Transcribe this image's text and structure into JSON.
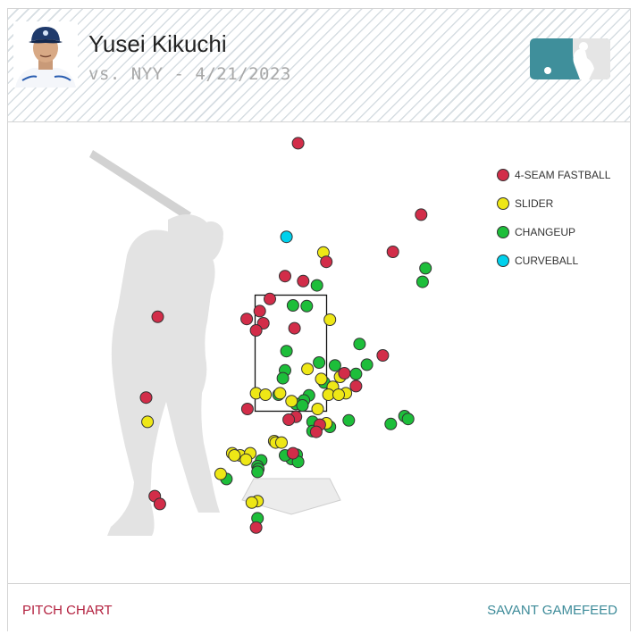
{
  "header": {
    "player_name": "Yusei Kikuchi",
    "game_info": "vs. NYY - 4/21/2023",
    "logo": "mlb-logo"
  },
  "footer": {
    "left_link": "PITCH CHART",
    "right_link": "SAVANT GAMEFEED"
  },
  "colors": {
    "4-SEAM FASTBALL": "#d22d49",
    "SLIDER": "#eee716",
    "CHANGEUP": "#1dbe3a",
    "CURVEBALL": "#00d1ed"
  },
  "chart_data": {
    "type": "scatter",
    "title": "",
    "xlabel": "",
    "ylabel": "",
    "legend_position": "top-right",
    "grid": false,
    "legend": [
      "4-SEAM FASTBALL",
      "SLIDER",
      "CHANGEUP",
      "CURVEBALL"
    ],
    "series": [
      {
        "name": "4-SEAM FASTBALL",
        "points": [
          [
            0.1,
            4.52
          ],
          [
            1.8,
            3.52
          ],
          [
            1.41,
            3.0
          ],
          [
            0.49,
            2.86
          ],
          [
            -0.08,
            2.66
          ],
          [
            0.17,
            2.59
          ],
          [
            -0.29,
            2.34
          ],
          [
            -0.43,
            2.17
          ],
          [
            -1.84,
            2.09
          ],
          [
            -0.61,
            2.06
          ],
          [
            -0.38,
            2.0
          ],
          [
            0.05,
            1.93
          ],
          [
            -0.48,
            1.9
          ],
          [
            1.27,
            1.55
          ],
          [
            0.74,
            1.3
          ],
          [
            0.9,
            1.12
          ],
          [
            -2.0,
            0.96
          ],
          [
            -0.6,
            0.8
          ],
          [
            0.07,
            0.69
          ],
          [
            -0.03,
            0.65
          ],
          [
            0.4,
            0.58
          ],
          [
            0.35,
            0.48
          ],
          [
            0.03,
            0.18
          ],
          [
            -1.88,
            -0.42
          ],
          [
            -1.81,
            -0.53
          ],
          [
            -0.48,
            -0.86
          ]
        ]
      },
      {
        "name": "SLIDER",
        "points": [
          [
            0.45,
            2.99
          ],
          [
            0.54,
            2.05
          ],
          [
            0.23,
            1.36
          ],
          [
            0.68,
            1.25
          ],
          [
            0.42,
            1.22
          ],
          [
            0.58,
            1.11
          ],
          [
            0.76,
            1.02
          ],
          [
            -0.48,
            1.02
          ],
          [
            -0.15,
            1.02
          ],
          [
            0.52,
            1.0
          ],
          [
            0.66,
            1.0
          ],
          [
            -0.35,
            1.0
          ],
          [
            0.01,
            0.91
          ],
          [
            0.37,
            0.8
          ],
          [
            -1.98,
            0.62
          ],
          [
            0.49,
            0.6
          ],
          [
            -0.23,
            0.35
          ],
          [
            -0.21,
            0.33
          ],
          [
            -0.13,
            0.33
          ],
          [
            -0.81,
            0.18
          ],
          [
            -0.7,
            0.15
          ],
          [
            -0.78,
            0.15
          ],
          [
            -0.56,
            0.18
          ],
          [
            -0.62,
            0.09
          ],
          [
            -0.97,
            -0.11
          ],
          [
            -0.46,
            -0.49
          ],
          [
            -0.54,
            -0.51
          ]
        ]
      },
      {
        "name": "CHANGEUP",
        "points": [
          [
            1.86,
            2.77
          ],
          [
            1.82,
            2.58
          ],
          [
            0.36,
            2.53
          ],
          [
            0.03,
            2.25
          ],
          [
            0.22,
            2.24
          ],
          [
            0.95,
            1.71
          ],
          [
            -0.06,
            1.61
          ],
          [
            0.61,
            1.41
          ],
          [
            1.05,
            1.42
          ],
          [
            0.39,
            1.45
          ],
          [
            -0.08,
            1.34
          ],
          [
            0.9,
            1.29
          ],
          [
            -0.11,
            1.23
          ],
          [
            0.46,
            1.17
          ],
          [
            0.25,
            0.99
          ],
          [
            0.18,
            0.92
          ],
          [
            -0.17,
            1.0
          ],
          [
            0.07,
            0.87
          ],
          [
            0.16,
            0.85
          ],
          [
            1.57,
            0.7
          ],
          [
            1.62,
            0.66
          ],
          [
            1.38,
            0.59
          ],
          [
            0.54,
            0.55
          ],
          [
            0.8,
            0.64
          ],
          [
            0.3,
            0.62
          ],
          [
            0.3,
            0.49
          ],
          [
            0.01,
            0.1
          ],
          [
            -0.08,
            0.15
          ],
          [
            0.08,
            0.16
          ],
          [
            -0.41,
            0.08
          ],
          [
            -0.46,
            0.0
          ],
          [
            0.1,
            0.06
          ],
          [
            -0.45,
            -0.04
          ],
          [
            -0.46,
            -0.08
          ],
          [
            -0.89,
            -0.18
          ],
          [
            -0.46,
            -0.73
          ]
        ]
      },
      {
        "name": "CURVEBALL",
        "points": [
          [
            -0.06,
            3.21
          ]
        ]
      }
    ]
  }
}
